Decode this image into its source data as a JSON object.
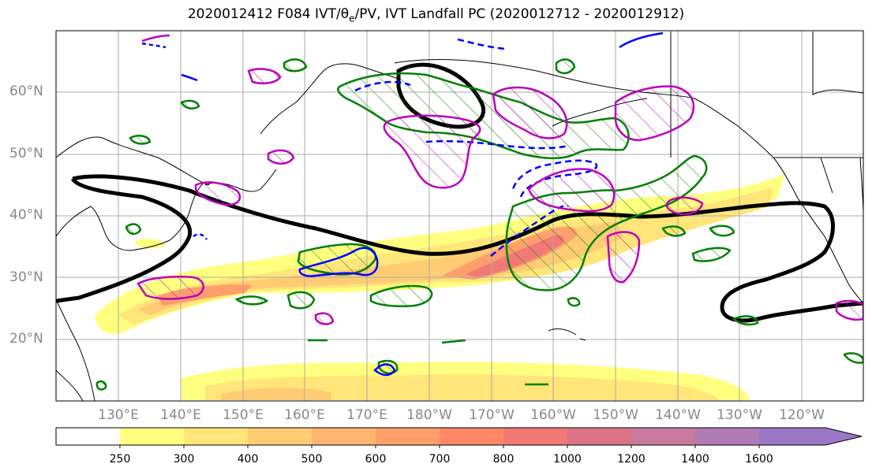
{
  "title_prefix": "2020012412 F084 IVT/",
  "title_theta": "θ",
  "title_sub": "e",
  "title_suffix": "/PV, IVT Landfall PC (2020012712 - 2020012912)",
  "lat_labels": [
    "60°N",
    "50°N",
    "40°N",
    "30°N",
    "20°N"
  ],
  "lon_labels": [
    "130°E",
    "140°E",
    "150°E",
    "160°E",
    "170°E",
    "180°W",
    "170°W",
    "160°W",
    "150°W",
    "140°W",
    "130°W",
    "120°W"
  ],
  "colorbar": {
    "ticks": [
      "250",
      "300",
      "400",
      "500",
      "600",
      "700",
      "800",
      "1000",
      "1200",
      "1400",
      "1600"
    ],
    "colors": [
      "#ffff7f",
      "#ffe57a",
      "#ffcc73",
      "#ffb570",
      "#ff9f6b",
      "#ff8866",
      "#f17a77",
      "#de7385",
      "#c87b9e",
      "#b07bb5",
      "#9a78c6"
    ]
  },
  "contour_colors": {
    "pv": "#000000",
    "theta_pos": "#008000",
    "theta_neg": "#0000ff",
    "pc": "#bb00bb"
  }
}
